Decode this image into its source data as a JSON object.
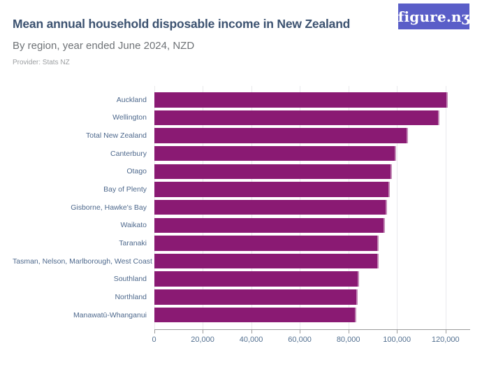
{
  "brand": {
    "logo_text": "figure.nʒ",
    "logo_bg": "#5a5ec8",
    "logo_fg": "#ffffff"
  },
  "header": {
    "title": "Mean annual household disposable income in New Zealand",
    "subtitle": "By region, year ended June 2024, NZD",
    "provider": "Provider: Stats NZ"
  },
  "chart_data": {
    "type": "bar",
    "orientation": "horizontal",
    "title": "Mean annual household disposable income in New Zealand",
    "subtitle": "By region, year ended June 2024, NZD",
    "provider": "Stats NZ",
    "categories": [
      "Auckland",
      "Wellington",
      "Total New Zealand",
      "Canterbury",
      "Otago",
      "Bay of Plenty",
      "Gisborne, Hawke's Bay",
      "Waikato",
      "Taranaki",
      "Tasman, Nelson, Marlborough, West Coast",
      "Southland",
      "Northland",
      "Manawatū-Whanganui"
    ],
    "values": [
      120800,
      117600,
      104600,
      99600,
      98000,
      97200,
      95900,
      95000,
      92600,
      92500,
      84500,
      83900,
      83300
    ],
    "xlabel": "",
    "ylabel": "",
    "xlim": [
      0,
      130000
    ],
    "xticks": [
      0,
      20000,
      40000,
      60000,
      80000,
      100000,
      120000
    ],
    "xtick_labels": [
      "0",
      "20,000",
      "40,000",
      "60,000",
      "80,000",
      "100,000",
      "120,000"
    ],
    "grid": true,
    "legend": "none",
    "colors": {
      "bar": "#8a1a73",
      "bar_edge": "#c38ab6",
      "gridline": "#e9e9ec",
      "axis": "#9a9a9a",
      "tick_label": "#537090",
      "category_label": "#4d688c",
      "title": "#3c5270",
      "subtitle": "#6e7276",
      "provider": "#9b9ea1",
      "logo_bg": "#5a5ec8"
    }
  }
}
